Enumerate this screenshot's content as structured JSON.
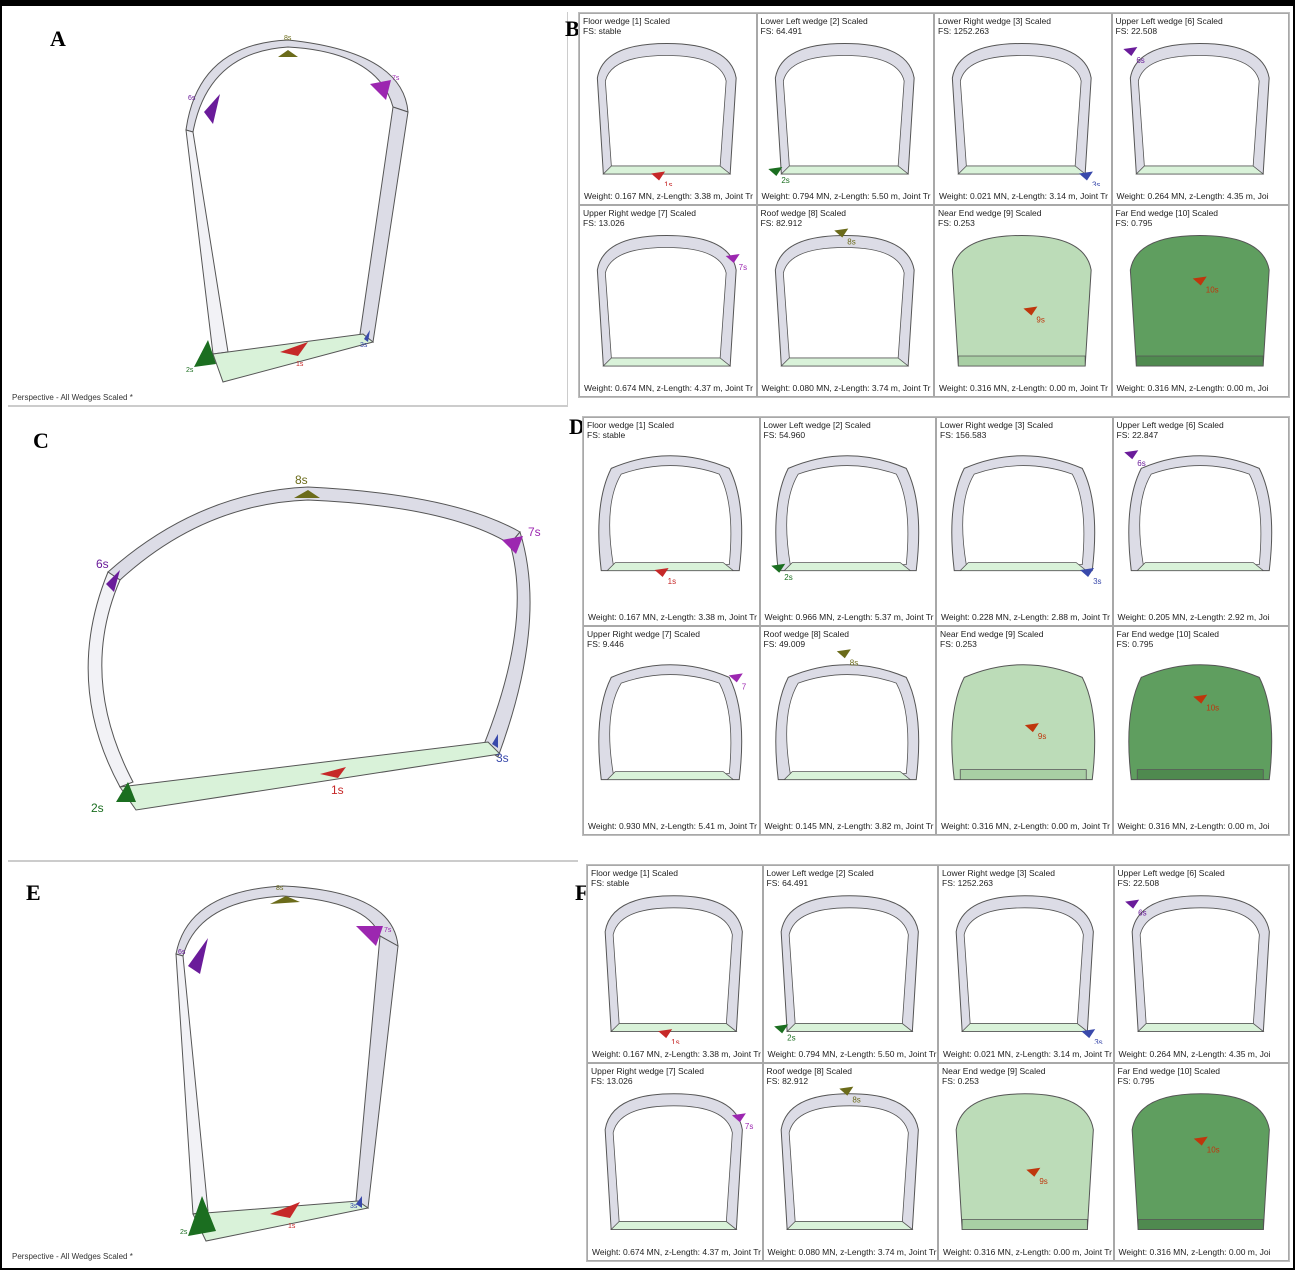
{
  "panel_letters": {
    "A": "A",
    "B": "B",
    "C": "C",
    "D": "D",
    "E": "E",
    "F": "F"
  },
  "perspective_caption": "Perspective - All Wedges Scaled *",
  "big_views": [
    {
      "id": "A",
      "labels": {
        "w8": "8s",
        "w7": "7s",
        "w6": "6s",
        "w2": "2s",
        "w1": "1s",
        "w3": "3s"
      }
    },
    {
      "id": "C",
      "labels": {
        "w8": "8s",
        "w7": "7s",
        "w6": "6s",
        "w2": "2s",
        "w1": "1s",
        "w3": "3s"
      }
    },
    {
      "id": "E",
      "labels": {
        "w8": "8s",
        "w7": "7s",
        "w6": "6s",
        "w2": "2s",
        "w1": "1s",
        "w3": "3s"
      }
    }
  ],
  "grids": [
    {
      "id": "B",
      "cells": [
        {
          "title": "Floor wedge [1] Scaled",
          "fs": "FS: stable",
          "footer": "Weight: 0.167 MN,  z-Length: 3.38 m,  Joint Tr",
          "marker": "1s"
        },
        {
          "title": "Lower Left wedge [2] Scaled",
          "fs": "FS: 64.491",
          "footer": "Weight: 0.794 MN,  z-Length: 5.50 m,  Joint Tr",
          "marker": "2s"
        },
        {
          "title": "Lower Right wedge [3] Scaled",
          "fs": "FS: 1252.263",
          "footer": "Weight: 0.021 MN,  z-Length: 3.14 m,  Joint Tr",
          "marker": "3s"
        },
        {
          "title": "Upper Left wedge [6] Scaled",
          "fs": "FS: 22.508",
          "footer": "Weight: 0.264 MN,  z-Length: 4.35 m,  Joi",
          "marker": "6s"
        },
        {
          "title": "Upper Right wedge [7] Scaled",
          "fs": "FS: 13.026",
          "footer": "Weight: 0.674 MN,  z-Length: 4.37 m,  Joint Tr",
          "marker": "7s"
        },
        {
          "title": "Roof wedge [8] Scaled",
          "fs": "FS: 82.912",
          "footer": "Weight: 0.080 MN,  z-Length: 3.74 m,  Joint Tr",
          "marker": "8s"
        },
        {
          "title": "Near End wedge [9] Scaled",
          "fs": "FS: 0.253",
          "footer": "Weight: 0.316 MN,  z-Length: 0.00 m,  Joint Tr",
          "marker": "9s"
        },
        {
          "title": "Far End wedge [10] Scaled",
          "fs": "FS: 0.795",
          "footer": "Weight: 0.316 MN,  z-Length: 0.00 m,  Joi",
          "marker": "10s"
        }
      ]
    },
    {
      "id": "D",
      "cells": [
        {
          "title": "Floor wedge [1] Scaled",
          "fs": "FS: stable",
          "footer": "Weight: 0.167 MN,  z-Length: 3.38 m,  Joint Tr",
          "marker": "1s"
        },
        {
          "title": "Lower Left wedge [2] Scaled",
          "fs": "FS: 54.960",
          "footer": "Weight: 0.966 MN,  z-Length: 5.37 m,  Joint Tr",
          "marker": "2s"
        },
        {
          "title": "Lower Right wedge [3] Scaled",
          "fs": "FS: 156.583",
          "footer": "Weight: 0.228 MN,  z-Length: 2.88 m,  Joint Tr",
          "marker": "3s"
        },
        {
          "title": "Upper Left wedge [6] Scaled",
          "fs": "FS: 22.847",
          "footer": "Weight: 0.205 MN,  z-Length: 2.92 m,  Joi",
          "marker": "6s"
        },
        {
          "title": "Upper Right wedge [7] Scaled",
          "fs": "FS: 9.446",
          "footer": "Weight: 0.930 MN,  z-Length: 5.41 m,  Joint Tr",
          "marker": "7"
        },
        {
          "title": "Roof wedge [8] Scaled",
          "fs": "FS: 49.009",
          "footer": "Weight: 0.145 MN,  z-Length: 3.82 m,  Joint Tr",
          "marker": "8s"
        },
        {
          "title": "Near End wedge [9] Scaled",
          "fs": "FS: 0.253",
          "footer": "Weight: 0.316 MN,  z-Length: 0.00 m,  Joint Tr",
          "marker": "9s"
        },
        {
          "title": "Far End wedge [10] Scaled",
          "fs": "FS: 0.795",
          "footer": "Weight: 0.316 MN,  z-Length: 0.00 m,  Joi",
          "marker": "10s"
        }
      ]
    },
    {
      "id": "F",
      "cells": [
        {
          "title": "Floor wedge [1] Scaled",
          "fs": "FS: stable",
          "footer": "Weight: 0.167 MN,  z-Length: 3.38 m,  Joint Tr",
          "marker": "1s"
        },
        {
          "title": "Lower Left wedge [2] Scaled",
          "fs": "FS: 64.491",
          "footer": "Weight: 0.794 MN,  z-Length: 5.50 m,  Joint Tr",
          "marker": "2s"
        },
        {
          "title": "Lower Right wedge [3] Scaled",
          "fs": "FS: 1252.263",
          "footer": "Weight: 0.021 MN,  z-Length: 3.14 m,  Joint Tr",
          "marker": "3s"
        },
        {
          "title": "Upper Left wedge [6] Scaled",
          "fs": "FS: 22.508",
          "footer": "Weight: 0.264 MN,  z-Length: 4.35 m,  Joi",
          "marker": "6s"
        },
        {
          "title": "Upper Right wedge [7] Scaled",
          "fs": "FS: 13.026",
          "footer": "Weight: 0.674 MN,  z-Length: 4.37 m,  Joint Tr",
          "marker": "7s"
        },
        {
          "title": "Roof wedge [8] Scaled",
          "fs": "FS: 82.912",
          "footer": "Weight: 0.080 MN,  z-Length: 3.74 m,  Joint Tr",
          "marker": "8s"
        },
        {
          "title": "Near End wedge [9] Scaled",
          "fs": "FS: 0.253",
          "footer": "Weight: 0.316 MN,  z-Length: 0.00 m,  Joint Tr",
          "marker": "9s"
        },
        {
          "title": "Far End wedge [10] Scaled",
          "fs": "FS: 0.795",
          "footer": "Weight: 0.316 MN,  z-Length: 0.00 m,  Joi",
          "marker": "10s"
        }
      ]
    }
  ],
  "colors": {
    "floor_wedge": "#c62828",
    "lower_left_wedge": "#1b6e20",
    "lower_right_wedge": "#3949ab",
    "upper_left_wedge": "#6a1b9a",
    "upper_right_wedge": "#9c27b0",
    "roof_wedge": "#6b6b1a",
    "end_wedge": "#bf360c",
    "floor_slab": "#d9f2d9",
    "near_end_fill": "#bcdcb8",
    "far_end_fill": "#5f9e5f",
    "tunnel_outline": "#555555",
    "tunnel_band": "#dcdce6"
  }
}
